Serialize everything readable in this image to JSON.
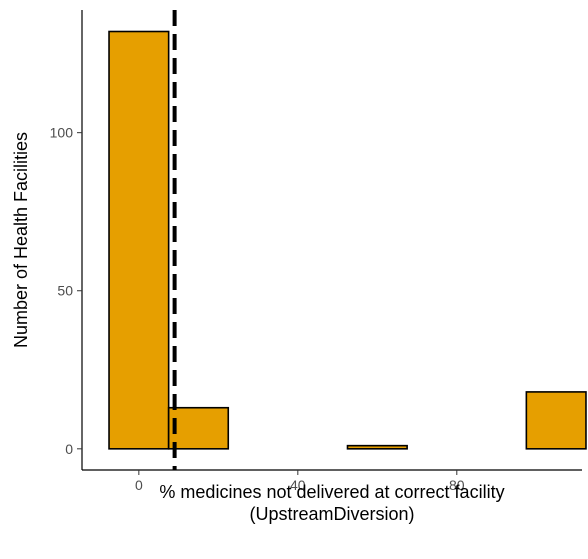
{
  "chart_data": {
    "type": "histogram",
    "title": "",
    "xlabel_lines": [
      "% medicines not delivered at correct facility",
      "(UpstreamDiversion)"
    ],
    "ylabel": "Number of Health Facilities",
    "xlim": [
      -14.3,
      111.5
    ],
    "ylim": [
      -6.7,
      138.8
    ],
    "x_ticks": [
      0,
      40,
      80
    ],
    "x_tick_labels": [
      "0",
      "40",
      "80"
    ],
    "y_ticks": [
      0,
      50,
      100
    ],
    "y_tick_labels": [
      "0",
      "50",
      "100"
    ],
    "bins": [
      {
        "x0": -7.5,
        "x1": 7.5,
        "count": 132
      },
      {
        "x0": 7.5,
        "x1": 22.5,
        "count": 13
      },
      {
        "x0": 22.5,
        "x1": 37.5,
        "count": 0
      },
      {
        "x0": 37.5,
        "x1": 52.5,
        "count": 0
      },
      {
        "x0": 52.5,
        "x1": 67.5,
        "count": 1
      },
      {
        "x0": 67.5,
        "x1": 82.5,
        "count": 0
      },
      {
        "x0": 82.5,
        "x1": 97.5,
        "count": 0
      },
      {
        "x0": 97.5,
        "x1": 112.5,
        "count": 18
      }
    ],
    "vline_x": 9,
    "vline_style": "dashed",
    "bar_fill": "#E69F00",
    "bar_stroke": "#000000",
    "grid": false,
    "legend": "none"
  }
}
